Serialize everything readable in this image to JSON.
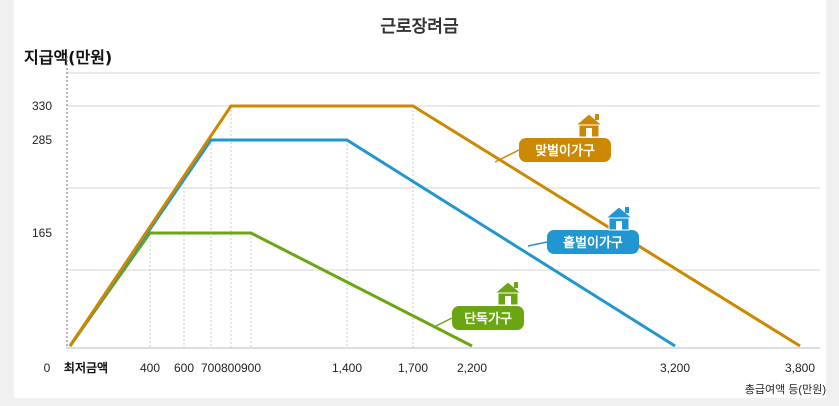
{
  "title": "근로장려금",
  "ylabel": "지급액(만원)",
  "xlabel": "총급여액 등(만원)",
  "colors": {
    "dual": "#cc8800",
    "single_earner": "#2196d0",
    "single": "#6aa612"
  },
  "chart_data": {
    "type": "line",
    "title": "근로장려금",
    "xlabel": "총급여액 등(만원)",
    "ylabel": "지급액(만원)",
    "x_origin_label": "최저금액",
    "y_origin_label": "0",
    "x_ticks": [
      {
        "value": 400,
        "label": "400"
      },
      {
        "value": 600,
        "label": "600"
      },
      {
        "value": 700,
        "label": "700"
      },
      {
        "value": 800,
        "label": "800"
      },
      {
        "value": 900,
        "label": "900"
      },
      {
        "value": 1400,
        "label": "1,400"
      },
      {
        "value": 1700,
        "label": "1,700"
      },
      {
        "value": 2200,
        "label": "2,200"
      },
      {
        "value": 3200,
        "label": "3,200"
      },
      {
        "value": 3800,
        "label": "3,800"
      }
    ],
    "y_ticks": [
      {
        "value": 165,
        "label": "165"
      },
      {
        "value": 285,
        "label": "285"
      },
      {
        "value": 330,
        "label": "330"
      }
    ],
    "series": [
      {
        "name": "맞벌이가구",
        "key": "dual",
        "points": [
          [
            0,
            0
          ],
          [
            800,
            330
          ],
          [
            1700,
            330
          ],
          [
            3800,
            0
          ]
        ]
      },
      {
        "name": "홑벌이가구",
        "key": "single_earner",
        "points": [
          [
            0,
            0
          ],
          [
            700,
            285
          ],
          [
            1400,
            285
          ],
          [
            3200,
            0
          ]
        ]
      },
      {
        "name": "단독가구",
        "key": "single",
        "points": [
          [
            0,
            0
          ],
          [
            400,
            165
          ],
          [
            900,
            165
          ],
          [
            2200,
            0
          ]
        ]
      }
    ]
  }
}
